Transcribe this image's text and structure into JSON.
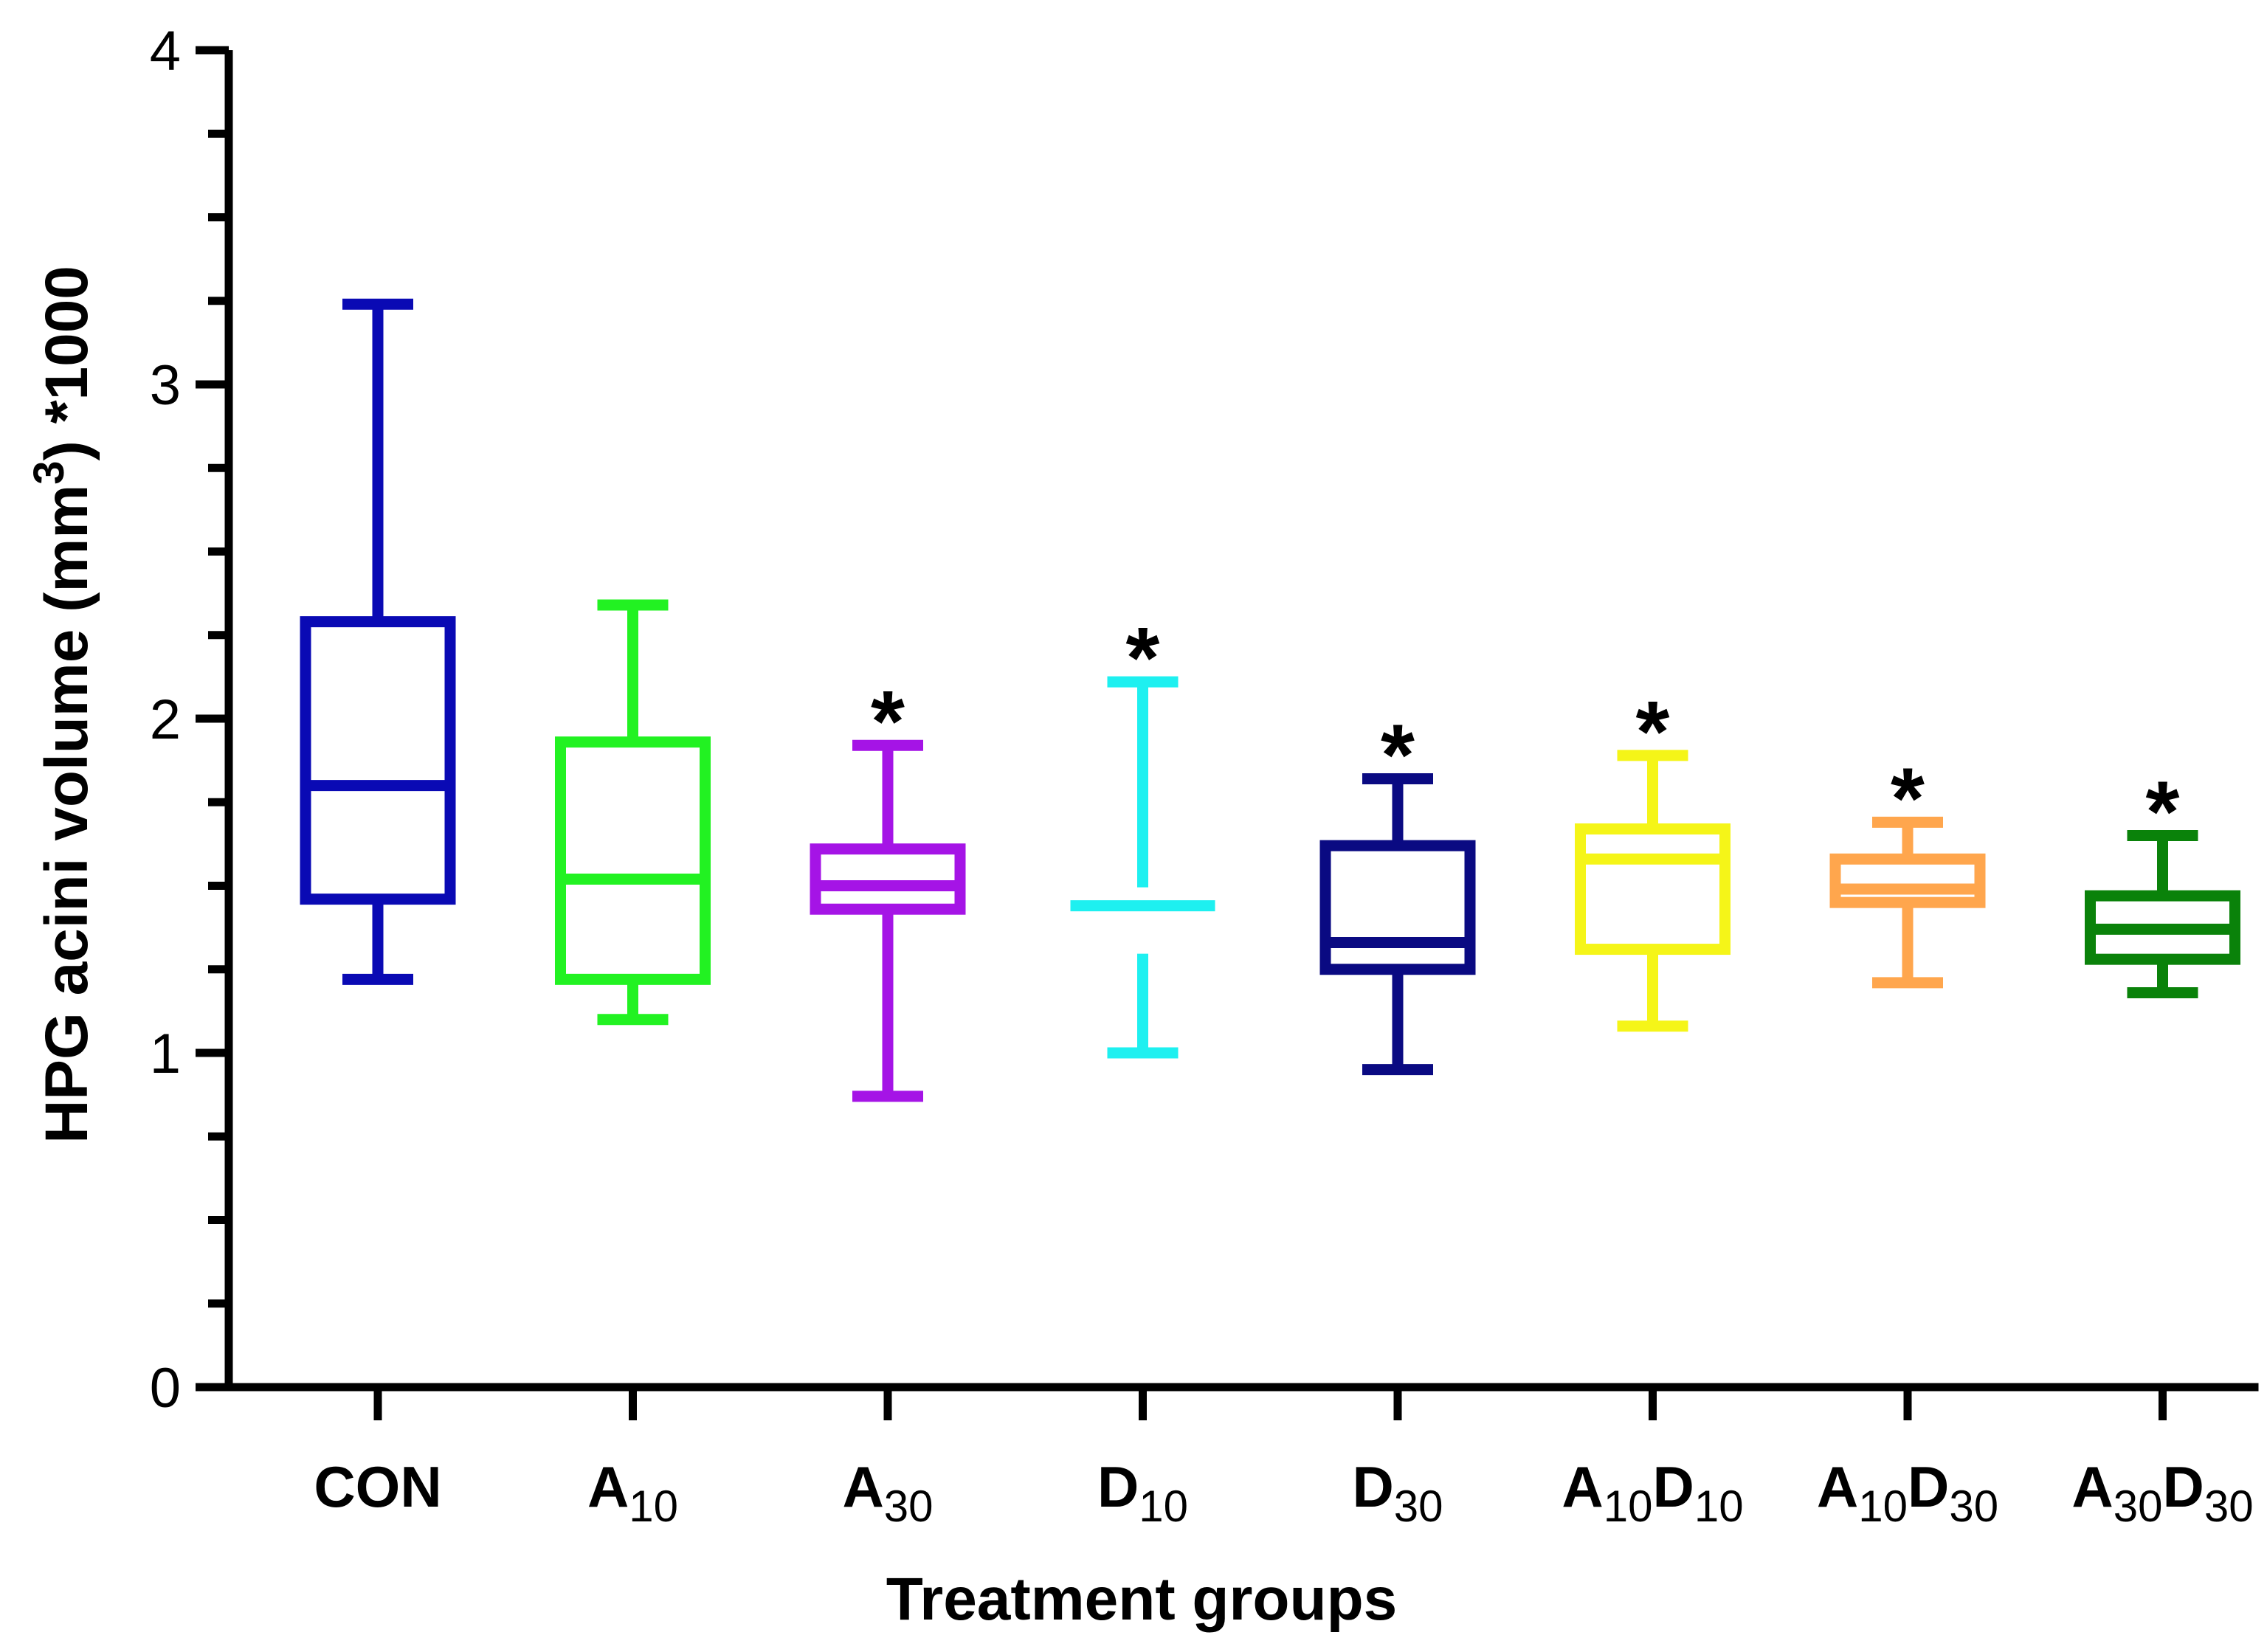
{
  "chart_data": {
    "type": "box",
    "title": "",
    "xlabel": "Treatment groups",
    "ylabel": "HPG acini volume (mm3) *1000",
    "ylabel_parts": {
      "before": "HPG acini volume (mm",
      "sup": "3",
      "after": ") *1000"
    },
    "ylim": [
      0,
      4
    ],
    "yticks": [
      "0",
      "1",
      "2",
      "3",
      "4"
    ],
    "minor_ticks_per_major": 4,
    "grid": false,
    "groups": [
      {
        "label": "CON",
        "base": "CON",
        "sub": "",
        "base2": "",
        "sub2": "",
        "color": "#0a0ab4",
        "min": 1.22,
        "q1": 1.46,
        "median": 1.8,
        "q3": 2.29,
        "max": 3.24,
        "significant": false,
        "marker": ""
      },
      {
        "label": "A10",
        "base": "A",
        "sub": "10",
        "base2": "",
        "sub2": "",
        "color": "#22f222",
        "min": 1.1,
        "q1": 1.22,
        "median": 1.52,
        "q3": 1.93,
        "max": 2.34,
        "significant": false,
        "marker": ""
      },
      {
        "label": "A30",
        "base": "A",
        "sub": "30",
        "base2": "",
        "sub2": "",
        "color": "#a514e6",
        "min": 0.87,
        "q1": 1.43,
        "median": 1.5,
        "q3": 1.61,
        "max": 1.92,
        "significant": true,
        "marker": "*"
      },
      {
        "label": "D10",
        "base": "D",
        "sub": "10",
        "base2": "",
        "sub2": "",
        "color": "#1ef0f0",
        "min": 1.0,
        "q1": 1.44,
        "median": 1.44,
        "q3": 1.44,
        "max": 2.11,
        "significant": true,
        "marker": "*"
      },
      {
        "label": "D30",
        "base": "D",
        "sub": "30",
        "base2": "",
        "sub2": "",
        "color": "#0a0a82",
        "min": 0.95,
        "q1": 1.25,
        "median": 1.33,
        "q3": 1.62,
        "max": 1.82,
        "significant": true,
        "marker": "*"
      },
      {
        "label": "A10D10",
        "base": "A",
        "sub": "10",
        "base2": "D",
        "sub2": "10",
        "color": "#f5f518",
        "min": 1.08,
        "q1": 1.31,
        "median": 1.58,
        "q3": 1.67,
        "max": 1.89,
        "significant": true,
        "marker": "*"
      },
      {
        "label": "A10D30",
        "base": "A",
        "sub": "10",
        "base2": "D",
        "sub2": "30",
        "color": "#ffa64d",
        "min": 1.21,
        "q1": 1.45,
        "median": 1.49,
        "q3": 1.58,
        "max": 1.69,
        "significant": true,
        "marker": "*"
      },
      {
        "label": "A30D30",
        "base": "A",
        "sub": "30",
        "base2": "D",
        "sub2": "30",
        "color": "#0a820a",
        "min": 1.18,
        "q1": 1.28,
        "median": 1.37,
        "q3": 1.47,
        "max": 1.65,
        "significant": true,
        "marker": "*"
      }
    ]
  }
}
